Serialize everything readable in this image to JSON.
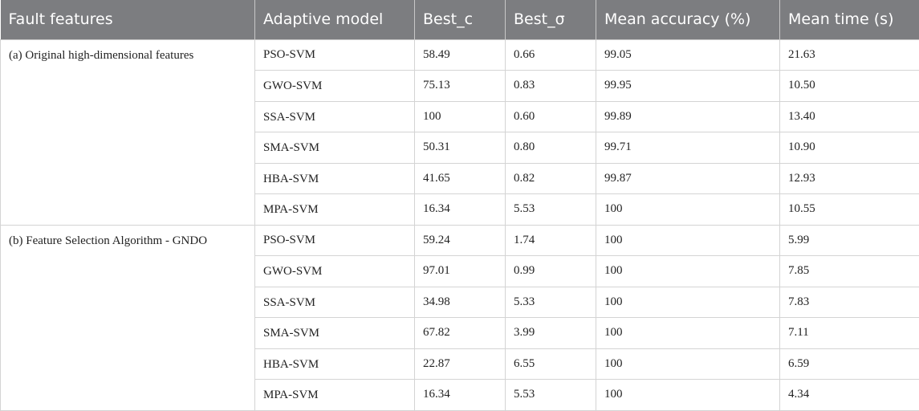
{
  "table": {
    "headers": [
      "Fault features",
      "Adaptive model",
      "Best_c",
      "Best_σ",
      "Mean accuracy (%)",
      "Mean time (s)"
    ],
    "groups": [
      {
        "label": "(a) Original high-dimensional features",
        "rows": [
          [
            "PSO-SVM",
            "58.49",
            "0.66",
            "99.05",
            "21.63"
          ],
          [
            "GWO-SVM",
            "75.13",
            "0.83",
            "99.95",
            "10.50"
          ],
          [
            "SSA-SVM",
            "100",
            "0.60",
            "99.89",
            "13.40"
          ],
          [
            "SMA-SVM",
            "50.31",
            "0.80",
            "99.71",
            "10.90"
          ],
          [
            "HBA-SVM",
            "41.65",
            "0.82",
            "99.87",
            "12.93"
          ],
          [
            "MPA-SVM",
            "16.34",
            "5.53",
            "100",
            "10.55"
          ]
        ]
      },
      {
        "label": "(b) Feature Selection Algorithm - GNDO",
        "rows": [
          [
            "PSO-SVM",
            "59.24",
            "1.74",
            "100",
            "5.99"
          ],
          [
            "GWO-SVM",
            "97.01",
            "0.99",
            "100",
            "7.85"
          ],
          [
            "SSA-SVM",
            "34.98",
            "5.33",
            "100",
            "7.83"
          ],
          [
            "SMA-SVM",
            "67.82",
            "3.99",
            "100",
            "7.11"
          ],
          [
            "HBA-SVM",
            "22.87",
            "6.55",
            "100",
            "6.59"
          ],
          [
            "MPA-SVM",
            "16.34",
            "5.53",
            "100",
            "4.34"
          ]
        ]
      }
    ]
  }
}
